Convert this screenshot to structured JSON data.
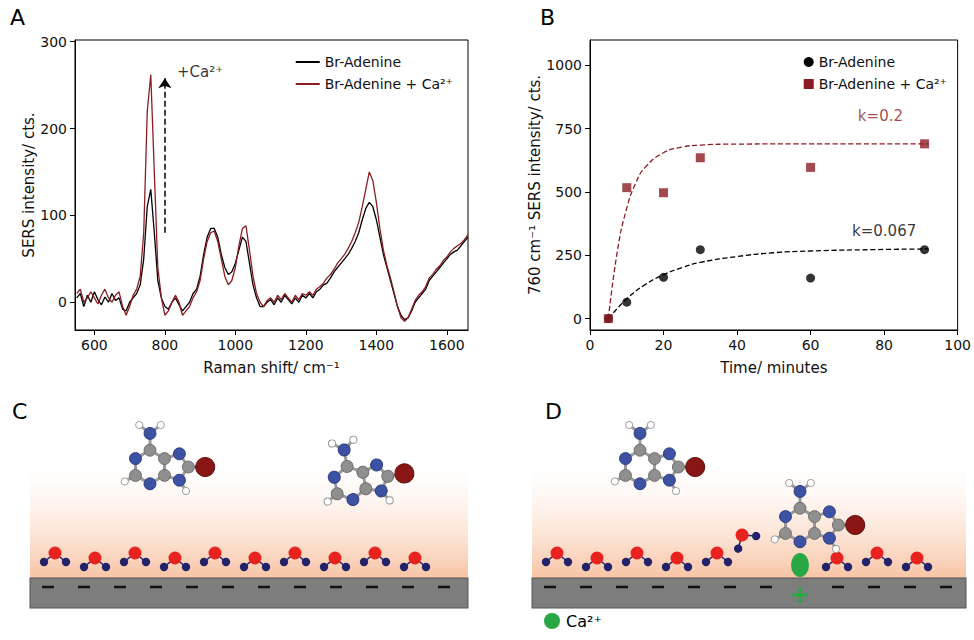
{
  "chart_data": [
    {
      "panel": "A",
      "type": "line",
      "x_label": "Raman shift/ cm⁻¹",
      "y_label": "SERS intensity/ cts.",
      "x": [
        550,
        560,
        570,
        580,
        590,
        600,
        610,
        620,
        630,
        640,
        650,
        660,
        670,
        680,
        690,
        700,
        710,
        720,
        730,
        740,
        750,
        760,
        770,
        780,
        790,
        800,
        810,
        820,
        830,
        840,
        850,
        860,
        870,
        880,
        890,
        900,
        910,
        920,
        930,
        940,
        950,
        960,
        970,
        980,
        990,
        1000,
        1010,
        1020,
        1030,
        1040,
        1050,
        1060,
        1070,
        1080,
        1090,
        1100,
        1110,
        1120,
        1130,
        1140,
        1150,
        1160,
        1170,
        1180,
        1190,
        1200,
        1210,
        1220,
        1230,
        1240,
        1250,
        1260,
        1270,
        1280,
        1290,
        1300,
        1310,
        1320,
        1330,
        1340,
        1350,
        1360,
        1370,
        1380,
        1390,
        1400,
        1410,
        1420,
        1430,
        1440,
        1450,
        1460,
        1470,
        1480,
        1490,
        1500,
        1510,
        1520,
        1530,
        1540,
        1550,
        1560,
        1570,
        1580,
        1590,
        1600,
        1610,
        1620,
        1630,
        1640,
        1650,
        1660
      ],
      "series": [
        {
          "name": "Br-Adenine",
          "color": "#000000",
          "values": [
            5,
            10,
            -5,
            8,
            0,
            12,
            3,
            -3,
            6,
            0,
            10,
            2,
            5,
            -8,
            -10,
            0,
            5,
            10,
            20,
            50,
            110,
            130,
            80,
            25,
            5,
            -5,
            -8,
            0,
            5,
            -3,
            -10,
            -5,
            0,
            10,
            15,
            30,
            55,
            75,
            85,
            85,
            75,
            55,
            40,
            32,
            35,
            45,
            60,
            75,
            70,
            45,
            20,
            5,
            -5,
            -5,
            0,
            3,
            -3,
            5,
            0,
            8,
            3,
            -2,
            5,
            0,
            8,
            5,
            10,
            5,
            12,
            15,
            20,
            22,
            28,
            35,
            40,
            45,
            50,
            55,
            62,
            70,
            80,
            95,
            108,
            115,
            110,
            95,
            75,
            55,
            40,
            25,
            10,
            -5,
            -15,
            -20,
            -18,
            -10,
            0,
            5,
            10,
            15,
            25,
            30,
            35,
            40,
            45,
            50,
            55,
            58,
            60,
            65,
            70,
            75
          ]
        },
        {
          "name": "Br-Adenine + Ca²⁺",
          "color": "#8c1c24",
          "values": [
            10,
            15,
            0,
            5,
            12,
            5,
            -2,
            8,
            15,
            5,
            0,
            8,
            12,
            -5,
            -15,
            -5,
            8,
            15,
            30,
            80,
            220,
            262,
            150,
            40,
            5,
            -15,
            -10,
            0,
            8,
            0,
            -15,
            -10,
            -5,
            5,
            12,
            25,
            50,
            70,
            80,
            82,
            70,
            50,
            30,
            20,
            25,
            40,
            65,
            85,
            88,
            60,
            30,
            10,
            0,
            -5,
            2,
            5,
            0,
            8,
            3,
            10,
            5,
            0,
            8,
            3,
            10,
            8,
            12,
            8,
            15,
            18,
            22,
            28,
            32,
            38,
            45,
            50,
            55,
            62,
            70,
            80,
            92,
            110,
            130,
            150,
            140,
            115,
            85,
            60,
            42,
            28,
            12,
            -5,
            -18,
            -22,
            -18,
            -8,
            2,
            8,
            12,
            18,
            28,
            32,
            38,
            42,
            48,
            52,
            58,
            62,
            65,
            68,
            72,
            78
          ]
        }
      ],
      "xlim": [
        545,
        1660
      ],
      "xticks": [
        600,
        800,
        1000,
        1200,
        1400,
        1600
      ],
      "ylim": [
        -32,
        302
      ],
      "yticks": [
        0,
        100,
        200,
        300
      ],
      "legend": "upper right",
      "grid": false,
      "annotations": [
        {
          "text": "+Ca²⁺",
          "x": 900,
          "y": 265,
          "arrow_from": [
            800,
            80
          ],
          "arrow_to": [
            800,
            258
          ]
        }
      ]
    },
    {
      "panel": "B",
      "type": "scatter",
      "x_label": "Time/ minutes",
      "y_label": "760 cm⁻¹ SERS intensity/ cts.",
      "series": [
        {
          "name": "Br-Adenine",
          "color": "#000000",
          "marker": "circle",
          "x": [
            5,
            10,
            20,
            30,
            60,
            91
          ],
          "values": [
            0,
            65,
            163,
            272,
            160,
            272
          ],
          "fit": {
            "line_style": "dashed",
            "x": [
              5,
              10,
              15,
              20,
              25,
              30,
              40,
              50,
              60,
              80,
              92
            ],
            "values": [
              0,
              78,
              134,
              173,
              201,
              222,
              245,
              260,
              267,
              273,
              275
            ]
          }
        },
        {
          "name": "Br-Adenine + Ca²⁺",
          "color": "#8c1c24",
          "marker": "square",
          "x": [
            5,
            10,
            20,
            30,
            60,
            91
          ],
          "values": [
            0,
            517,
            497,
            635,
            597,
            690
          ],
          "fit": {
            "line_style": "dashed",
            "x": [
              5,
              7.5,
              10,
              12.5,
              15,
              20,
              25,
              30,
              40,
              60,
              92
            ],
            "values": [
              0,
              271,
              436,
              537,
              597,
              655,
              677,
              685,
              689,
              690,
              690
            ]
          }
        }
      ],
      "xlim": [
        0,
        100
      ],
      "xticks": [
        0,
        20,
        40,
        60,
        80,
        100
      ],
      "ylim": [
        -45,
        1100
      ],
      "yticks": [
        0,
        250,
        500,
        750,
        1000
      ],
      "legend": "upper right",
      "grid": false,
      "annotations": [
        {
          "text": "k=0.2",
          "x": 79,
          "y": 800,
          "color": "#8c1c24"
        },
        {
          "text": "k=0.067",
          "x": 80,
          "y": 345,
          "color": "#000000"
        }
      ]
    }
  ],
  "diagrams": [
    {
      "panel": "C"
    },
    {
      "panel": "D",
      "key": {
        "label": "Ca²⁺"
      }
    }
  ]
}
